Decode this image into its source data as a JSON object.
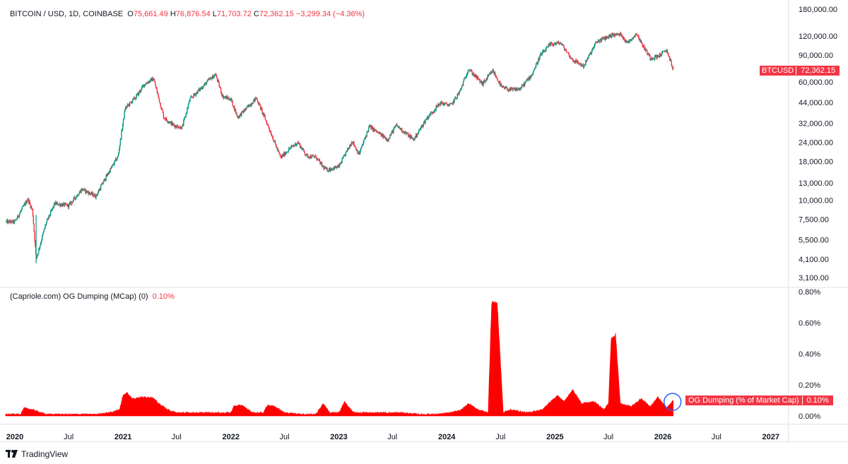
{
  "header": {
    "symbol": "BITCOIN / USD, 1D, COINBASE",
    "o_label": "O",
    "o_value": "75,661.49",
    "h_label": "H",
    "h_value": "76,876.54",
    "l_label": "L",
    "l_value": "71,703.72",
    "c_label": "C",
    "c_value": "72,362.15",
    "change": "−3,299.34 (−4.36%)"
  },
  "price_tag": {
    "name": "BTCUSD",
    "value": "72,362.15"
  },
  "indicator": {
    "title": "(Capriole.com) OG Dumping (MCap) (0)",
    "value": "0.10%",
    "tag_name": "OG Dumping (% of Market Cap)",
    "tag_value": "0.10%"
  },
  "price_axis_labels": [
    "180,000.00",
    "120,000.00",
    "90,000.00",
    "60,000.00",
    "44,000.00",
    "32,000.00",
    "24,000.00",
    "18,000.00",
    "13,000.00",
    "10,000.00",
    "7,500.00",
    "5,500.00",
    "4,100.00",
    "3,100.00"
  ],
  "indicator_axis_labels": [
    "0.80%",
    "0.60%",
    "0.40%",
    "0.20%",
    "0.00%"
  ],
  "time_axis": [
    {
      "label": "2020",
      "bold": true
    },
    {
      "label": "Jul",
      "bold": false
    },
    {
      "label": "2021",
      "bold": true
    },
    {
      "label": "Jul",
      "bold": false
    },
    {
      "label": "2022",
      "bold": true
    },
    {
      "label": "Jul",
      "bold": false
    },
    {
      "label": "2023",
      "bold": true
    },
    {
      "label": "Jul",
      "bold": false
    },
    {
      "label": "2024",
      "bold": true
    },
    {
      "label": "Jul",
      "bold": false
    },
    {
      "label": "2025",
      "bold": true
    },
    {
      "label": "Jul",
      "bold": false
    },
    {
      "label": "2026",
      "bold": true
    },
    {
      "label": "Jul",
      "bold": false
    },
    {
      "label": "2027",
      "bold": true
    }
  ],
  "branding": {
    "logo_text": "TradingView"
  },
  "colors": {
    "up": "#089981",
    "down": "#f23645",
    "indicator": "#ff0000",
    "highlight_circle": "#2962ff"
  },
  "chart_data": [
    {
      "type": "line",
      "title": "BITCOIN / USD, 1D, COINBASE",
      "scale": "log",
      "ylim": [
        3100,
        180000
      ],
      "xlim": [
        "2019-12-01",
        "2027-02-28"
      ],
      "legend": "none",
      "series": [
        {
          "name": "BTCUSD",
          "x": [
            "2019-12-01",
            "2020-01-01",
            "2020-02-14",
            "2020-03-01",
            "2020-03-13",
            "2020-04-15",
            "2020-05-15",
            "2020-07-01",
            "2020-08-15",
            "2020-10-01",
            "2020-11-01",
            "2020-12-15",
            "2021-01-08",
            "2021-02-15",
            "2021-03-15",
            "2021-04-14",
            "2021-05-19",
            "2021-06-22",
            "2021-07-20",
            "2021-08-15",
            "2021-09-07",
            "2021-10-20",
            "2021-11-10",
            "2021-12-04",
            "2022-01-01",
            "2022-01-24",
            "2022-03-28",
            "2022-05-09",
            "2022-06-18",
            "2022-07-15",
            "2022-08-15",
            "2022-09-15",
            "2022-10-15",
            "2022-11-09",
            "2022-11-21",
            "2023-01-01",
            "2023-02-15",
            "2023-03-10",
            "2023-04-14",
            "2023-06-15",
            "2023-07-14",
            "2023-09-11",
            "2023-10-25",
            "2023-12-10",
            "2024-01-15",
            "2024-02-15",
            "2024-03-14",
            "2024-05-01",
            "2024-06-05",
            "2024-07-05",
            "2024-08-05",
            "2024-09-06",
            "2024-10-15",
            "2024-11-12",
            "2024-12-17",
            "2025-01-20",
            "2025-02-28",
            "2025-04-08",
            "2025-05-22",
            "2025-07-14",
            "2025-08-14",
            "2025-09-01",
            "2025-10-06",
            "2025-10-15",
            "2025-11-20",
            "2025-12-15",
            "2026-01-14",
            "2026-02-05"
          ],
          "y": [
            7200,
            7200,
            10200,
            8500,
            4100,
            7000,
            9500,
            9200,
            11800,
            10600,
            13800,
            19400,
            40000,
            48000,
            58000,
            63000,
            35000,
            31000,
            30000,
            46000,
            51000,
            62000,
            67000,
            48000,
            46000,
            35000,
            47000,
            30000,
            19000,
            21500,
            24000,
            19500,
            19200,
            16500,
            15800,
            16600,
            24500,
            20000,
            30500,
            25000,
            31000,
            25000,
            34500,
            43500,
            42000,
            52000,
            73000,
            58000,
            71000,
            55000,
            53000,
            54000,
            67000,
            89000,
            106000,
            108000,
            84000,
            76000,
            110000,
            122000,
            123000,
            108000,
            125000,
            112000,
            86000,
            88000,
            97000,
            72362.15
          ]
        }
      ]
    },
    {
      "type": "area",
      "title": "(Capriole.com) OG Dumping (MCap) (0)",
      "units": "% of market cap",
      "ylim": [
        0,
        0.8
      ],
      "xlim": [
        "2019-12-01",
        "2027-02-28"
      ],
      "legend": "none",
      "series": [
        {
          "name": "OG Dumping (% of Market Cap)",
          "x": [
            "2019-12-01",
            "2020-01-20",
            "2020-02-01",
            "2020-03-01",
            "2020-04-15",
            "2020-06-01",
            "2020-08-01",
            "2020-10-01",
            "2020-11-15",
            "2020-12-20",
            "2021-01-01",
            "2021-01-15",
            "2021-02-01",
            "2021-03-01",
            "2021-04-10",
            "2021-05-01",
            "2021-06-01",
            "2021-07-01",
            "2021-09-01",
            "2021-11-01",
            "2022-01-01",
            "2022-01-10",
            "2022-02-05",
            "2022-03-15",
            "2022-04-20",
            "2022-05-05",
            "2022-06-01",
            "2022-07-01",
            "2022-09-01",
            "2022-10-15",
            "2022-11-10",
            "2022-12-01",
            "2023-01-01",
            "2023-01-20",
            "2023-02-20",
            "2023-04-01",
            "2023-06-01",
            "2023-08-01",
            "2023-10-01",
            "2023-12-01",
            "2024-01-15",
            "2024-02-20",
            "2024-03-15",
            "2024-04-15",
            "2024-05-20",
            "2024-06-01",
            "2024-06-20",
            "2024-07-10",
            "2024-08-01",
            "2024-10-01",
            "2024-11-20",
            "2024-12-10",
            "2025-01-10",
            "2025-02-01",
            "2025-03-01",
            "2025-04-01",
            "2025-05-15",
            "2025-06-15",
            "2025-07-01",
            "2025-07-10",
            "2025-07-25",
            "2025-08-10",
            "2025-09-15",
            "2025-10-20",
            "2025-11-20",
            "2025-12-15",
            "2026-01-14",
            "2026-02-05"
          ],
          "y": [
            0.01,
            0.01,
            0.05,
            0.04,
            0.01,
            0.01,
            0.01,
            0.01,
            0.02,
            0.04,
            0.13,
            0.15,
            0.11,
            0.12,
            0.12,
            0.08,
            0.04,
            0.02,
            0.02,
            0.02,
            0.02,
            0.06,
            0.07,
            0.02,
            0.02,
            0.07,
            0.06,
            0.02,
            0.01,
            0.01,
            0.08,
            0.02,
            0.02,
            0.09,
            0.02,
            0.02,
            0.02,
            0.02,
            0.01,
            0.01,
            0.02,
            0.04,
            0.08,
            0.04,
            0.02,
            0.73,
            0.72,
            0.02,
            0.04,
            0.02,
            0.04,
            0.08,
            0.13,
            0.09,
            0.17,
            0.08,
            0.09,
            0.04,
            0.08,
            0.49,
            0.52,
            0.08,
            0.06,
            0.11,
            0.06,
            0.12,
            0.05,
            0.1
          ]
        }
      ]
    }
  ]
}
